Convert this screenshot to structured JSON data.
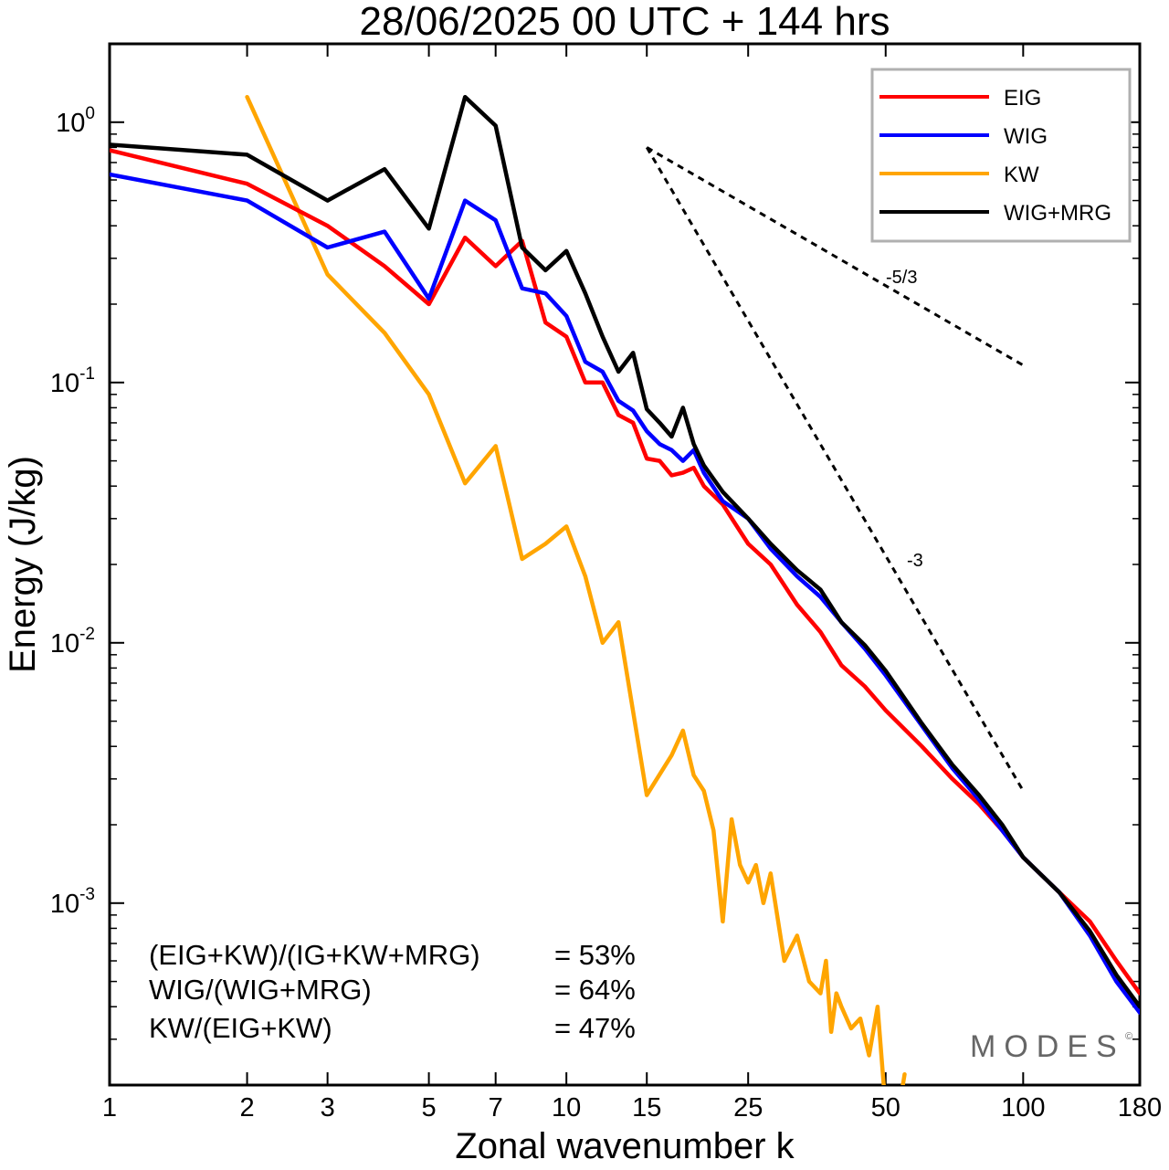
{
  "chart_data": {
    "type": "line",
    "title": "28/06/2025  00 UTC  + 144 hrs",
    "xlabel": "Zonal wavenumber k",
    "ylabel": "Energy (J/kg)",
    "xscale": "log",
    "yscale": "log",
    "xlim": [
      1,
      180
    ],
    "ylim": [
      0.0002,
      2.0
    ],
    "xticks": [
      1,
      2,
      3,
      5,
      7,
      10,
      15,
      25,
      50,
      100,
      180
    ],
    "yticks": [
      {
        "value": 1,
        "base": "10",
        "exp": "0"
      },
      {
        "value": 0.1,
        "base": "10",
        "exp": "-1"
      },
      {
        "value": 0.01,
        "base": "10",
        "exp": "-2"
      },
      {
        "value": 0.001,
        "base": "10",
        "exp": "-3"
      }
    ],
    "legend_position": "top-right",
    "series": [
      {
        "name": "EIG",
        "color": "#ff0000",
        "x": [
          1,
          2,
          3,
          4,
          5,
          6,
          7,
          8,
          9,
          10,
          11,
          12,
          13,
          14,
          15,
          16,
          17,
          18,
          19,
          20,
          22,
          25,
          28,
          32,
          36,
          40,
          45,
          50,
          60,
          70,
          80,
          90,
          100,
          120,
          140,
          160,
          180
        ],
        "y": [
          0.78,
          0.58,
          0.4,
          0.28,
          0.2,
          0.36,
          0.28,
          0.35,
          0.17,
          0.15,
          0.1,
          0.1,
          0.075,
          0.07,
          0.051,
          0.05,
          0.044,
          0.045,
          0.047,
          0.04,
          0.034,
          0.024,
          0.02,
          0.014,
          0.011,
          0.0082,
          0.0068,
          0.0055,
          0.004,
          0.003,
          0.0024,
          0.0019,
          0.0015,
          0.0011,
          0.00085,
          0.0006,
          0.00045
        ]
      },
      {
        "name": "WIG",
        "color": "#0000ff",
        "x": [
          1,
          2,
          3,
          4,
          5,
          6,
          7,
          8,
          9,
          10,
          11,
          12,
          13,
          14,
          15,
          16,
          17,
          18,
          19,
          20,
          22,
          25,
          28,
          32,
          36,
          40,
          45,
          50,
          60,
          70,
          80,
          90,
          100,
          120,
          140,
          160,
          180
        ],
        "y": [
          0.63,
          0.5,
          0.33,
          0.38,
          0.21,
          0.5,
          0.42,
          0.23,
          0.22,
          0.18,
          0.12,
          0.11,
          0.085,
          0.078,
          0.065,
          0.058,
          0.055,
          0.05,
          0.055,
          0.045,
          0.035,
          0.03,
          0.023,
          0.018,
          0.015,
          0.012,
          0.0095,
          0.0075,
          0.0048,
          0.0033,
          0.0025,
          0.0019,
          0.0015,
          0.0011,
          0.00075,
          0.0005,
          0.00038
        ]
      },
      {
        "name": "KW",
        "color": "#ffa500",
        "x": [
          2,
          3,
          4,
          5,
          6,
          7,
          8,
          9,
          10,
          11,
          12,
          13,
          15,
          17,
          18,
          19,
          20,
          21,
          22,
          23,
          24,
          25,
          26,
          27,
          28,
          30,
          32,
          34,
          36,
          37,
          38,
          39,
          40,
          42,
          44,
          46,
          48,
          50,
          52,
          55
        ],
        "y": [
          1.25,
          0.26,
          0.155,
          0.09,
          0.041,
          0.057,
          0.021,
          0.024,
          0.028,
          0.018,
          0.01,
          0.012,
          0.0026,
          0.0037,
          0.0046,
          0.0031,
          0.0027,
          0.0019,
          0.00085,
          0.0021,
          0.0014,
          0.0012,
          0.0014,
          0.001,
          0.0013,
          0.0006,
          0.00075,
          0.0005,
          0.00045,
          0.0006,
          0.00032,
          0.00045,
          0.0004,
          0.00033,
          0.00036,
          0.00026,
          0.0004,
          0.00016,
          0.00012,
          0.00022
        ]
      },
      {
        "name": "WIG+MRG",
        "color": "#000000",
        "x": [
          1,
          2,
          3,
          4,
          5,
          6,
          7,
          8,
          9,
          10,
          11,
          12,
          13,
          14,
          15,
          16,
          17,
          18,
          19,
          20,
          22,
          25,
          28,
          32,
          36,
          40,
          45,
          50,
          60,
          70,
          80,
          90,
          100,
          120,
          140,
          160,
          180
        ],
        "y": [
          0.82,
          0.75,
          0.5,
          0.66,
          0.39,
          1.25,
          0.97,
          0.33,
          0.27,
          0.32,
          0.22,
          0.15,
          0.11,
          0.13,
          0.079,
          0.07,
          0.062,
          0.08,
          0.058,
          0.048,
          0.038,
          0.03,
          0.024,
          0.019,
          0.016,
          0.012,
          0.0098,
          0.0078,
          0.0049,
          0.0034,
          0.0026,
          0.002,
          0.0015,
          0.0011,
          0.00078,
          0.00053,
          0.0004
        ]
      }
    ],
    "reference_slopes": [
      {
        "label": "-5/3",
        "x": [
          15,
          100
        ],
        "y": [
          0.8,
          0.1165
        ]
      },
      {
        "label": "-3",
        "x": [
          15,
          100
        ],
        "y": [
          0.8,
          0.0027
        ]
      }
    ],
    "annotations": [
      {
        "text": "(EIG+KW)/(IG+KW+MRG)",
        "value": "= 53%"
      },
      {
        "text": "WIG/(WIG+MRG)",
        "value": "= 64%"
      },
      {
        "text": "KW/(EIG+KW)",
        "value": "= 47%"
      }
    ],
    "grid": false
  },
  "watermark": {
    "text": "MODES",
    "mark": "©"
  }
}
